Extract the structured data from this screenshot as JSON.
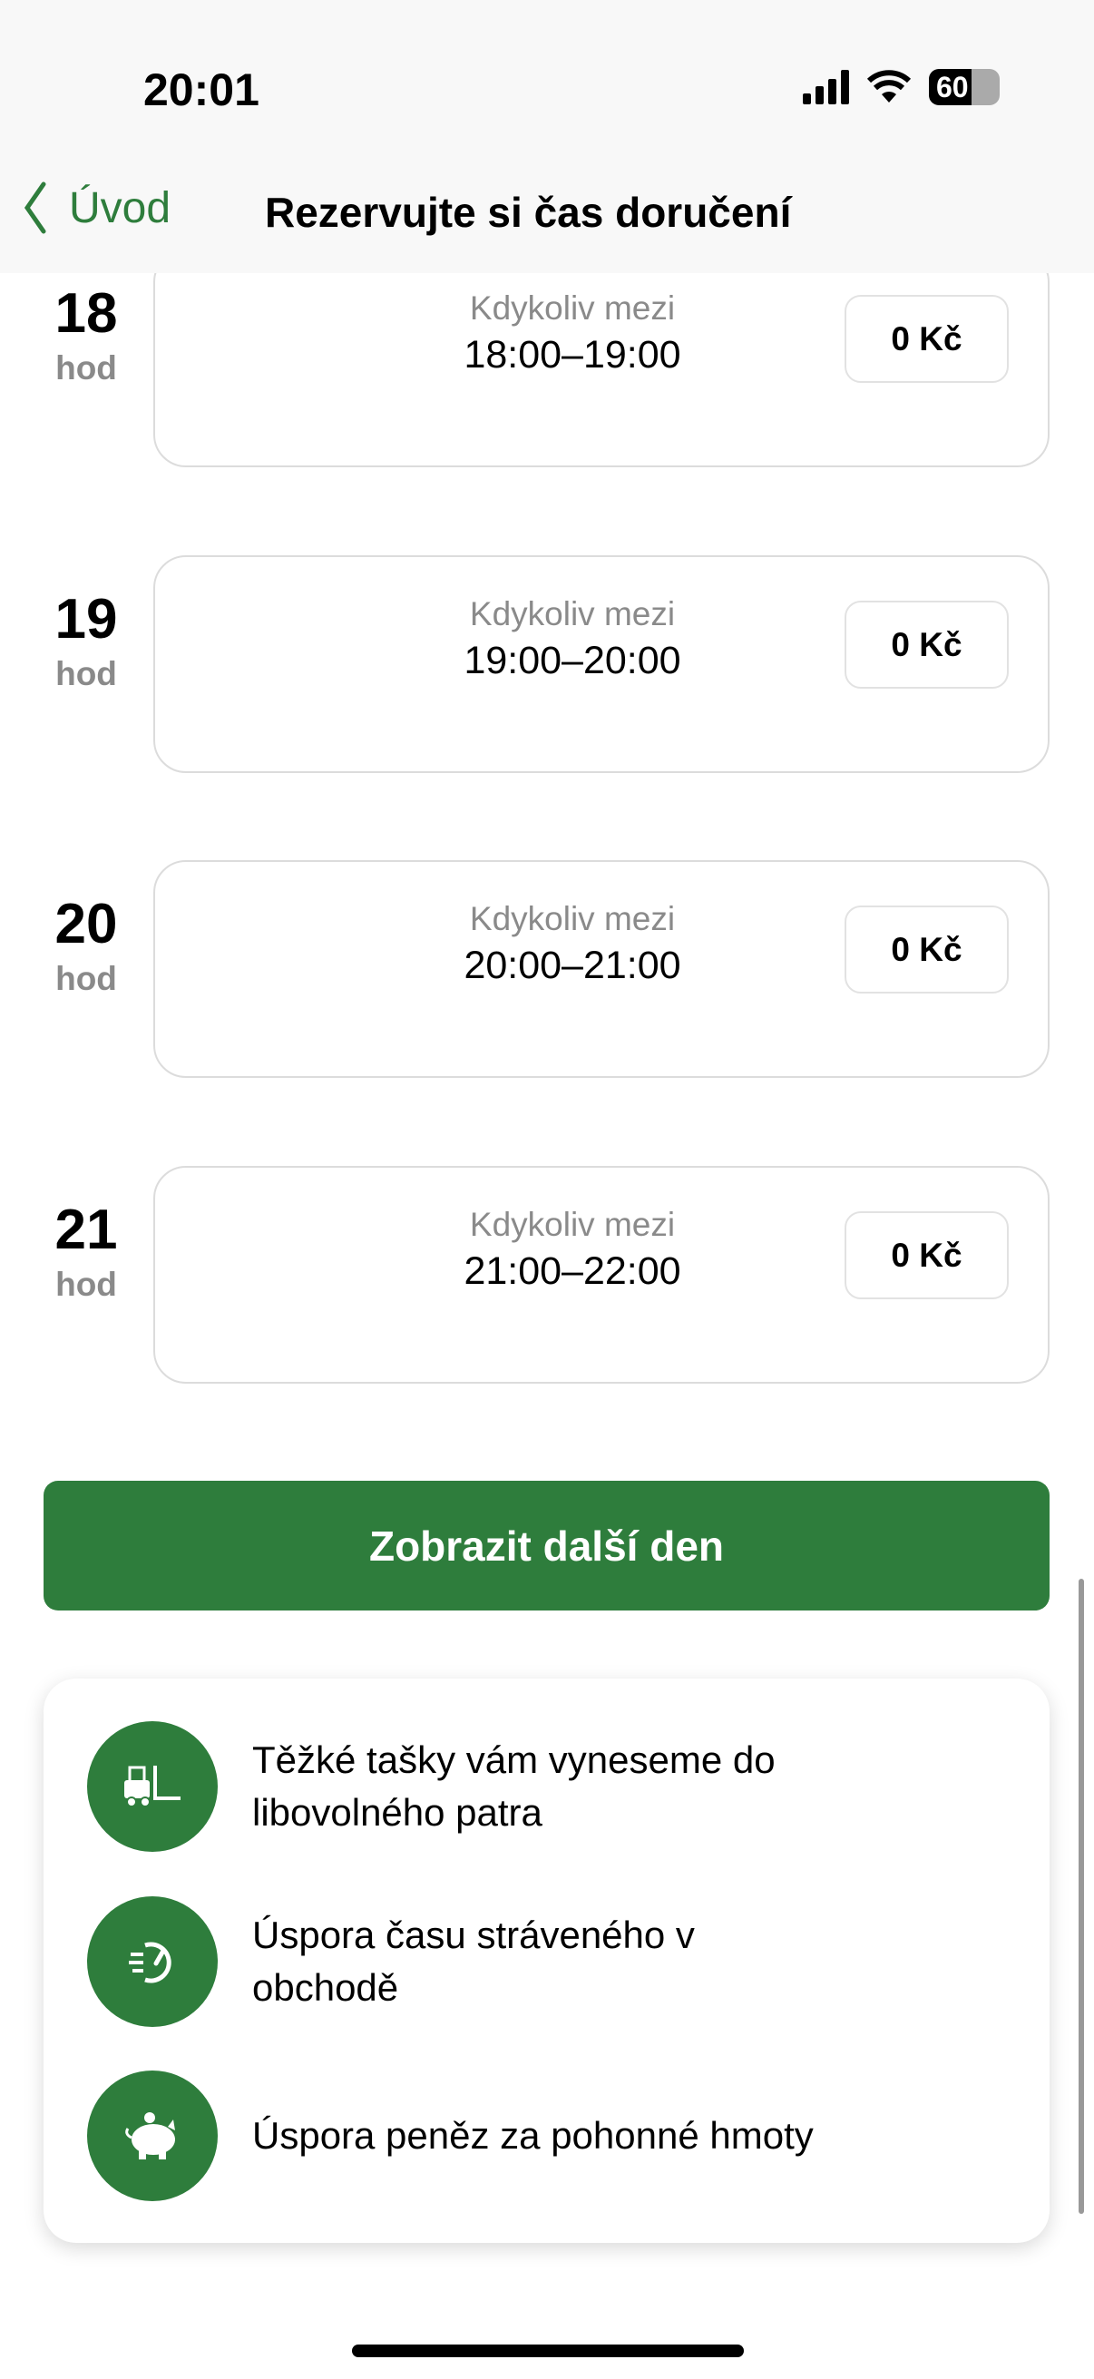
{
  "status_bar": {
    "time": "20:01",
    "battery": "60",
    "icons": [
      "cellular-signal-icon",
      "wifi-icon",
      "battery-icon"
    ]
  },
  "nav": {
    "back_label": "Úvod",
    "title": "Rezervujte si čas doručení"
  },
  "slots": [
    {
      "hour": "18",
      "unit": "hod",
      "label": "Kdykoliv mezi",
      "range": "18:00–19:00",
      "price": "0 Kč"
    },
    {
      "hour": "19",
      "unit": "hod",
      "label": "Kdykoliv mezi",
      "range": "19:00–20:00",
      "price": "0 Kč"
    },
    {
      "hour": "20",
      "unit": "hod",
      "label": "Kdykoliv mezi",
      "range": "20:00–21:00",
      "price": "0 Kč"
    },
    {
      "hour": "21",
      "unit": "hod",
      "label": "Kdykoliv mezi",
      "range": "21:00–22:00",
      "price": "0 Kč"
    }
  ],
  "next_day_button": "Zobrazit další den",
  "features": [
    {
      "icon": "forklift-icon",
      "text": "Těžké tašky vám vyneseme do libovolného patra"
    },
    {
      "icon": "fast-clock-icon",
      "text": "Úspora času stráveného v obchodě"
    },
    {
      "icon": "piggy-bank-icon",
      "text": "Úspora peněz za pohonné hmoty"
    }
  ],
  "colors": {
    "accent": "#2e7d3c"
  }
}
